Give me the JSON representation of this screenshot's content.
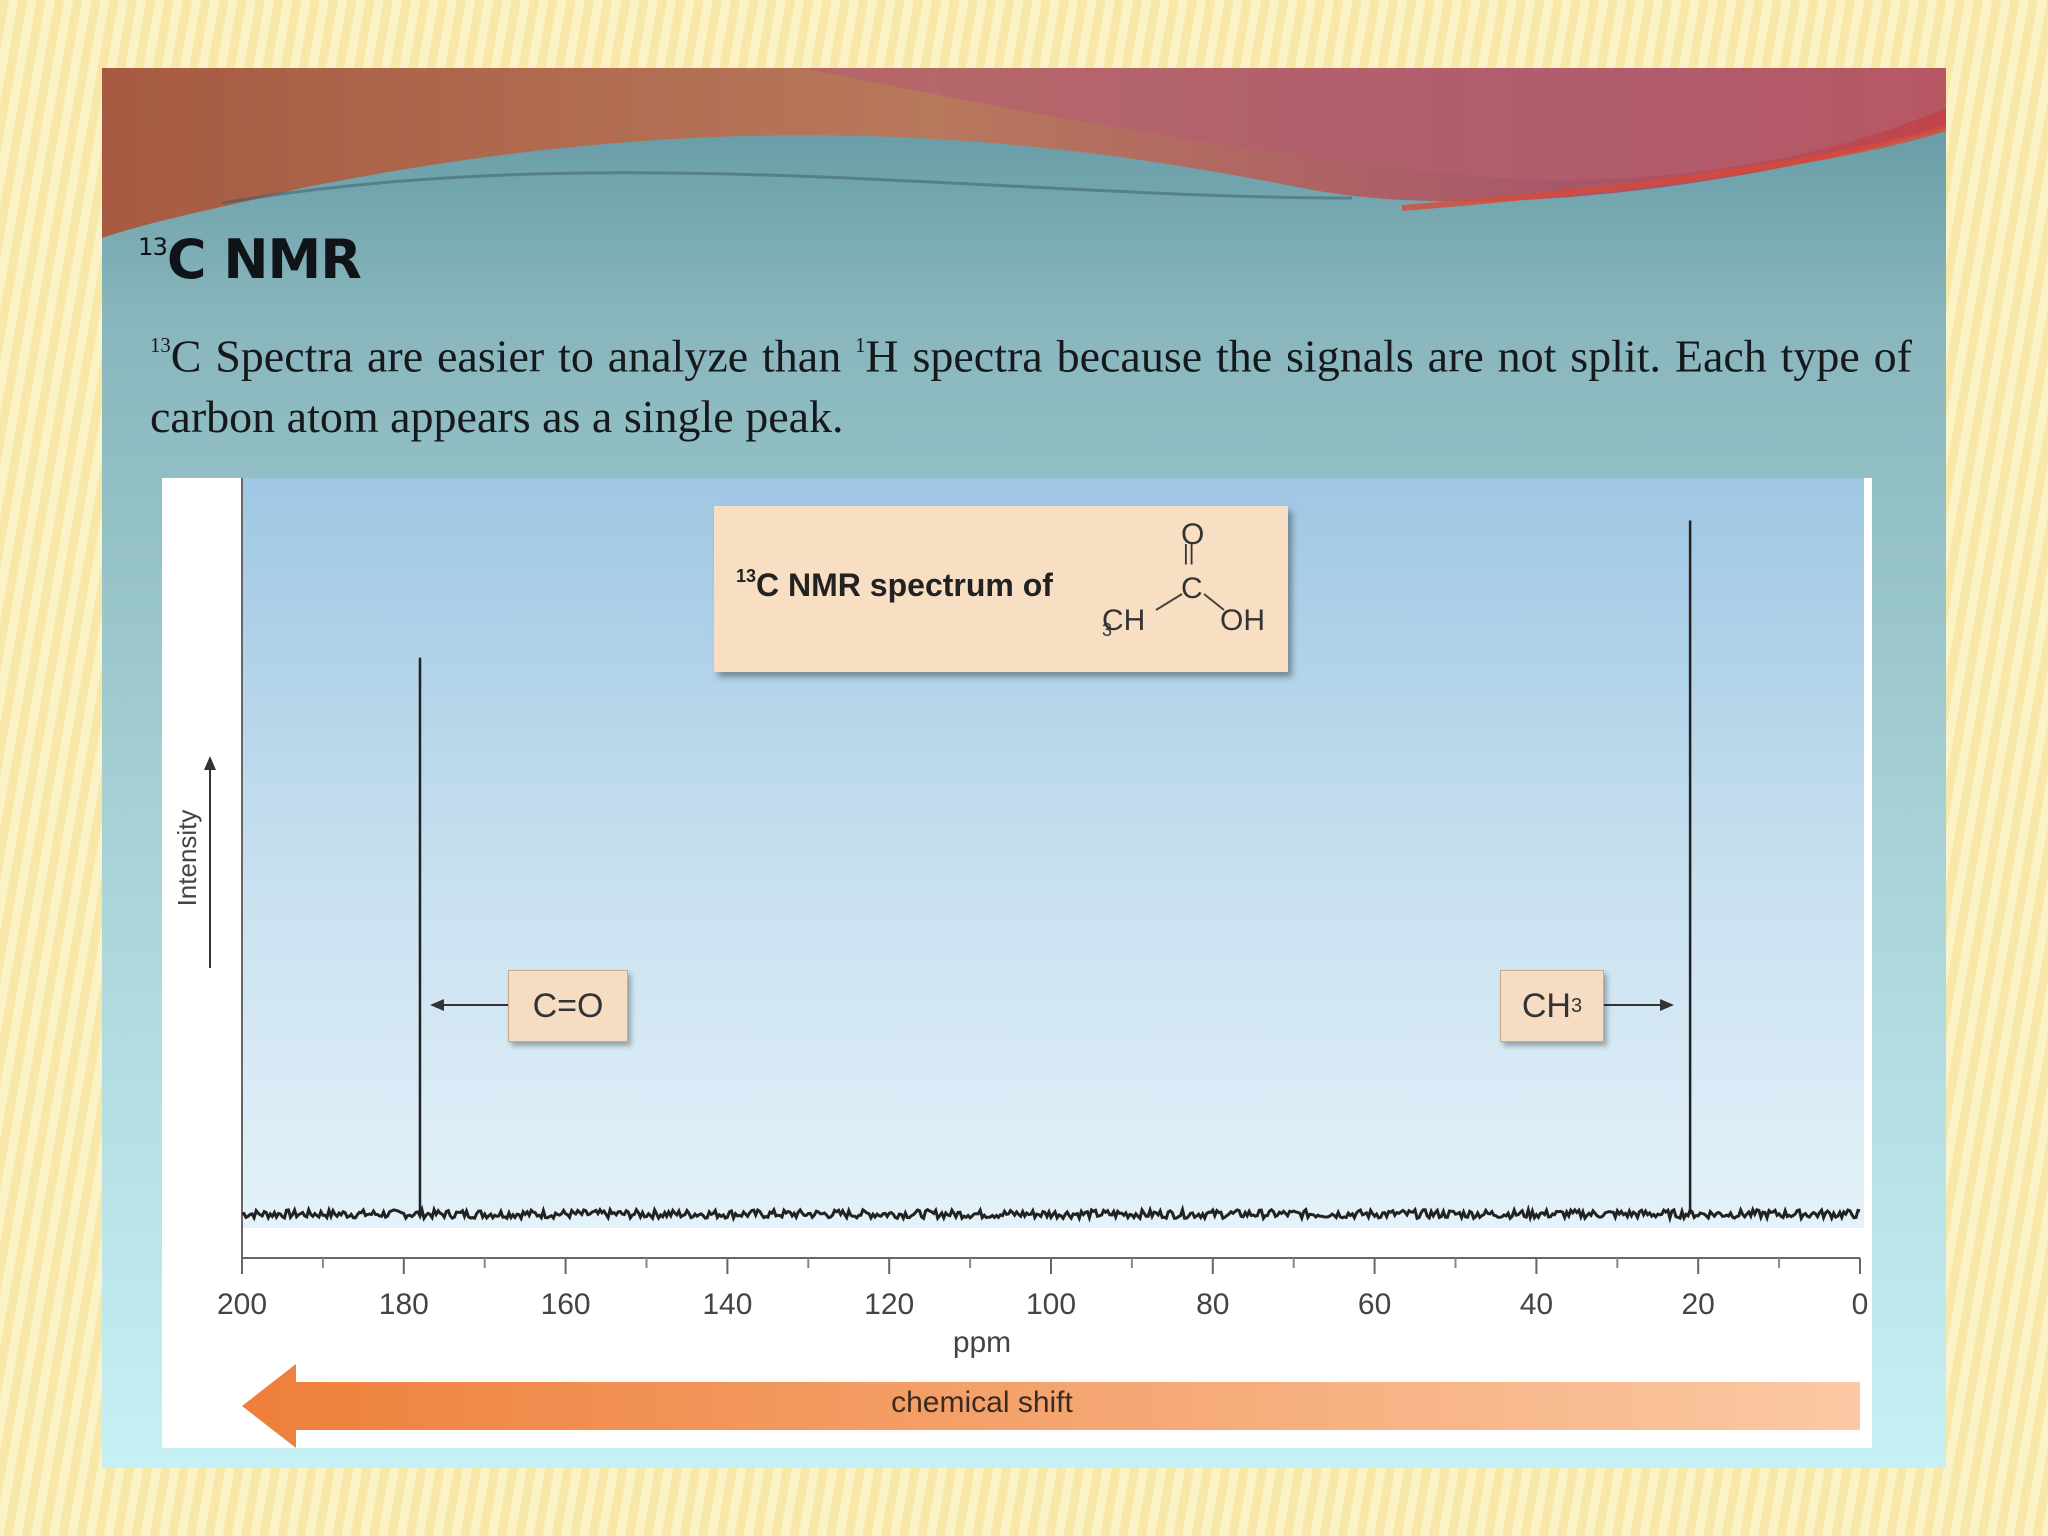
{
  "slide": {
    "title_sup": "13",
    "title_main": "C NMR",
    "body_sup1": "13",
    "body_part1": "C Spectra are easier to analyze than ",
    "body_sup2": "1",
    "body_part2": "H spectra because the signals are not split. Each type of carbon atom appears as a single peak."
  },
  "figure": {
    "title_sup": "13",
    "title_main": "C NMR spectrum of",
    "structure": {
      "o_top": "O",
      "c": "C",
      "ch3": "CH",
      "ch3_sub": "3",
      "oh": "OH"
    },
    "colors": {
      "title_box": "#f8dfc4",
      "label_box": "#f6dcc2",
      "arrow_start": "#ee7f3a",
      "arrow_end": "#fbc9a4",
      "spectrum_line": "#222222"
    }
  },
  "chart_data": {
    "type": "line",
    "title": "13C NMR spectrum of CH3COOH",
    "xlabel": "ppm",
    "ylabel": "Intensity",
    "xlim": [
      200,
      0
    ],
    "x_reversed": true,
    "x_ticks": [
      200,
      180,
      160,
      140,
      120,
      100,
      80,
      60,
      40,
      20,
      0
    ],
    "x_tick_labels": [
      "200",
      "180",
      "160",
      "140",
      "120",
      "100",
      "80",
      "60",
      "40",
      "20",
      "0"
    ],
    "ylim": [
      0,
      1
    ],
    "grid": false,
    "peaks": [
      {
        "ppm": 178,
        "intensity": 0.79,
        "label": "C=O",
        "label_main": "C=O",
        "label_sub": "",
        "arrow": "left"
      },
      {
        "ppm": 21,
        "intensity": 0.98,
        "label": "CH3",
        "label_main": "CH",
        "label_sub": "3",
        "arrow": "right"
      }
    ],
    "baseline_intensity": 0.0,
    "annotation": "chemical shift",
    "annotation_arrow": "left"
  }
}
